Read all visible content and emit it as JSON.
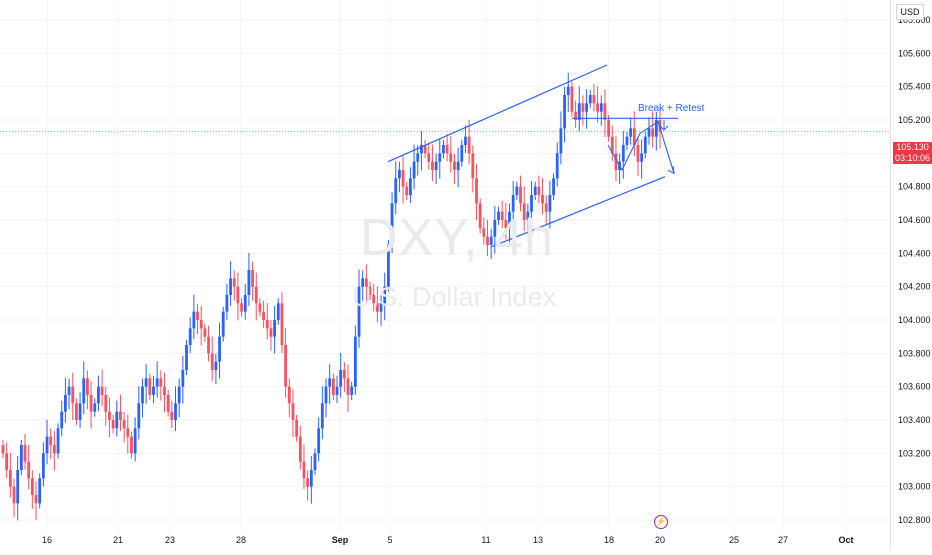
{
  "symbol_watermark": "DXY, 4h",
  "description_watermark": "U.S. Dollar Index",
  "currency": "USD",
  "last_price": {
    "value": "105.130",
    "countdown": "03:10:06",
    "color": "#f23645"
  },
  "annotation": "Break + Retest",
  "event_icon": "lightning-bolt-icon",
  "colors": {
    "up": "#2962ff",
    "down": "#f7525f",
    "drawing": "#2962ff",
    "grid": "#f0f3fa"
  },
  "chart_data": {
    "type": "candlestick",
    "timeframe": "4h",
    "ylim": [
      102.74,
      105.92
    ],
    "y_ticks": [
      102.8,
      103.0,
      103.2,
      103.4,
      103.6,
      103.8,
      104.0,
      104.2,
      104.4,
      104.6,
      104.8,
      105.0,
      105.2,
      105.4,
      105.6,
      105.8
    ],
    "y_tick_labels": [
      "102.800",
      "103.000",
      "103.200",
      "103.400",
      "103.600",
      "103.800",
      "104.000",
      "104.200",
      "104.400",
      "104.600",
      "104.800",
      "105.000",
      "105.200",
      "105.400",
      "105.600",
      "105.800"
    ],
    "x_tick_labels": [
      "16",
      "21",
      "23",
      "28",
      "Sep",
      "5",
      "11",
      "13",
      "18",
      "20",
      "25",
      "27",
      "Oct"
    ],
    "closes": [
      103.2,
      103.1,
      103.0,
      102.9,
      103.1,
      103.25,
      103.15,
      103.05,
      102.95,
      102.9,
      103.05,
      103.2,
      103.3,
      103.25,
      103.2,
      103.35,
      103.45,
      103.55,
      103.6,
      103.5,
      103.4,
      103.5,
      103.65,
      103.55,
      103.45,
      103.5,
      103.6,
      103.55,
      103.45,
      103.4,
      103.35,
      103.45,
      103.4,
      103.35,
      103.3,
      103.2,
      103.35,
      103.5,
      103.6,
      103.65,
      103.55,
      103.6,
      103.65,
      103.6,
      103.55,
      103.45,
      103.4,
      103.5,
      103.6,
      103.7,
      103.85,
      103.95,
      104.05,
      104.0,
      103.95,
      103.9,
      103.8,
      103.7,
      103.75,
      103.9,
      104.05,
      104.15,
      104.25,
      104.2,
      104.1,
      104.05,
      104.15,
      104.3,
      104.2,
      104.1,
      104.05,
      104.0,
      103.95,
      103.9,
      104.0,
      104.1,
      103.85,
      103.6,
      103.5,
      103.4,
      103.3,
      103.15,
      103.05,
      103.0,
      103.1,
      103.2,
      103.35,
      103.5,
      103.6,
      103.65,
      103.55,
      103.6,
      103.7,
      103.65,
      103.55,
      103.6,
      103.9,
      104.2,
      104.25,
      104.2,
      104.15,
      104.1,
      104.05,
      104.1,
      104.2,
      104.45,
      104.7,
      104.85,
      104.9,
      104.8,
      104.75,
      104.85,
      104.95,
      105.0,
      105.05,
      105.0,
      104.95,
      104.9,
      104.95,
      105.0,
      105.05,
      105.0,
      104.95,
      104.9,
      104.95,
      105.05,
      105.1,
      105.0,
      104.85,
      104.7,
      104.55,
      104.5,
      104.45,
      104.5,
      104.6,
      104.65,
      104.6,
      104.55,
      104.65,
      104.75,
      104.8,
      104.7,
      104.6,
      104.65,
      104.75,
      104.8,
      104.75,
      104.7,
      104.65,
      104.75,
      104.85,
      105.0,
      105.15,
      105.35,
      105.4,
      105.25,
      105.2,
      105.3,
      105.25,
      105.3,
      105.35,
      105.3,
      105.25,
      105.3,
      105.2,
      105.1,
      105.0,
      104.9,
      104.95,
      105.05,
      105.1,
      105.15,
      105.05,
      104.95,
      105.0,
      105.1,
      105.15,
      105.1,
      105.2,
      105.13
    ],
    "drawings": [
      {
        "type": "ascending-channel",
        "upper_line": [
          [
            388,
            104.95
          ],
          [
            607,
            105.53
          ]
        ],
        "lower_line": [
          [
            492,
            104.44
          ],
          [
            665,
            104.86
          ]
        ]
      },
      {
        "type": "horizontal-level",
        "price": 105.21
      },
      {
        "type": "zigzag-projection",
        "points": [
          [
            608,
            105.05
          ],
          [
            622,
            104.9
          ],
          [
            640,
            105.12
          ],
          [
            658,
            105.19
          ],
          [
            674,
            104.88
          ]
        ]
      }
    ]
  }
}
